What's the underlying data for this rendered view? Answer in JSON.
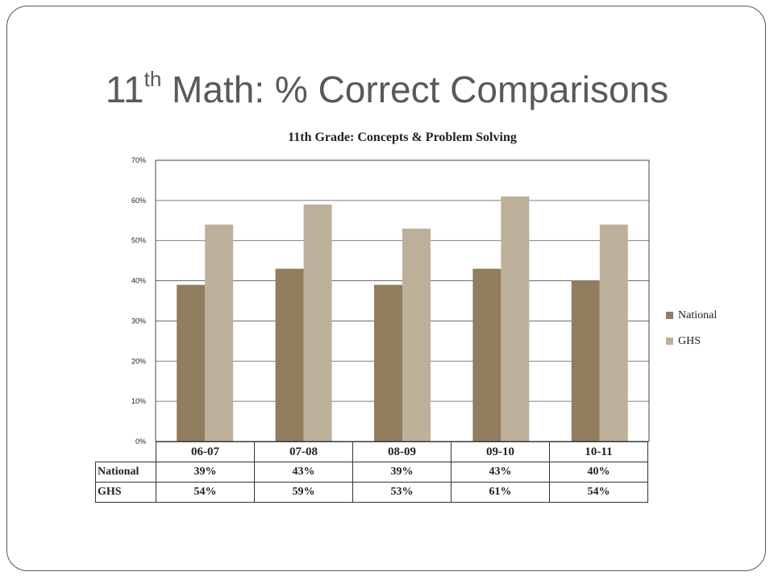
{
  "slide": {
    "title_prefix": "11",
    "title_sup": "th",
    "title_rest": " Math:  % Correct Comparisons"
  },
  "colors": {
    "national": "#8f7d5e",
    "ghs": "#bdb09b",
    "gridline": "#555555"
  },
  "chart_data": {
    "type": "bar",
    "title": "11th Grade: Concepts & Problem Solving",
    "categories": [
      "06-07",
      "07-08",
      "08-09",
      "09-10",
      "10-11"
    ],
    "series": [
      {
        "name": "National",
        "values": [
          39,
          43,
          39,
          43,
          40
        ],
        "labels": [
          "39%",
          "43%",
          "39%",
          "43%",
          "40%"
        ]
      },
      {
        "name": "GHS",
        "values": [
          54,
          59,
          53,
          61,
          54
        ],
        "labels": [
          "54%",
          "59%",
          "53%",
          "61%",
          "54%"
        ]
      }
    ],
    "ylim": [
      0,
      70
    ],
    "yticks": [
      "0%",
      "10%",
      "20%",
      "30%",
      "40%",
      "50%",
      "60%",
      "70%"
    ],
    "grid": true,
    "legend_position": "right",
    "data_table": true
  }
}
